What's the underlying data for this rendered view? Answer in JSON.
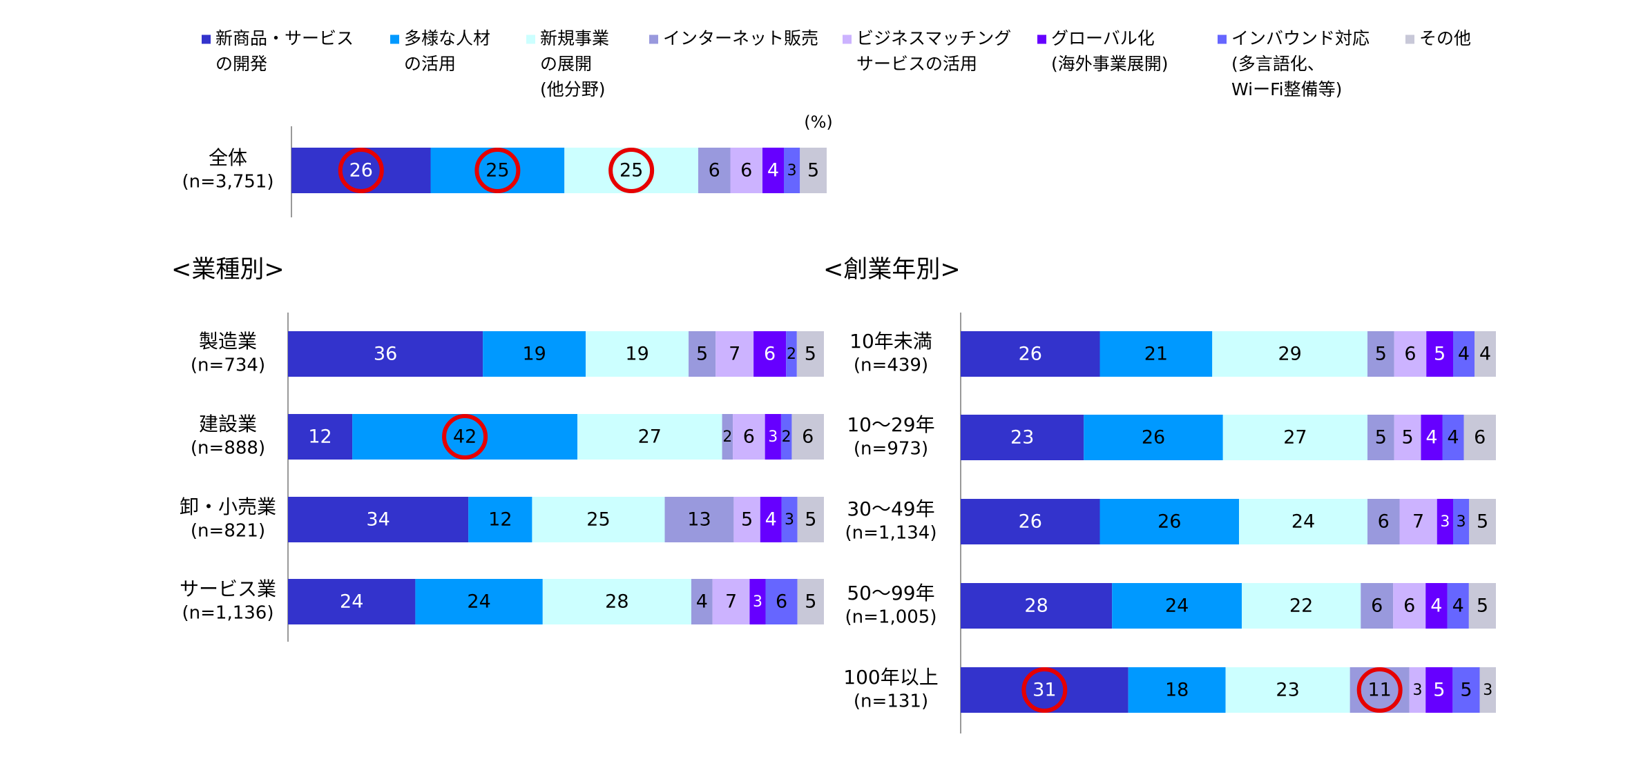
{
  "chart_data": {
    "type": "bar",
    "orientation": "horizontal",
    "stacked": true,
    "unit_label": "(%)",
    "legend_placement": "top",
    "series": [
      {
        "name": "新商品・サービス\nの開発",
        "color": "#3333cc"
      },
      {
        "name": "多様な人材\nの活用",
        "color": "#0099ff"
      },
      {
        "name": "新規事業\nの展開\n(他分野)",
        "color": "#ccffff"
      },
      {
        "name": "インターネット販売",
        "color": "#9999dd"
      },
      {
        "name": "ビジネスマッチング\nサービスの活用",
        "color": "#ccb3ff"
      },
      {
        "name": "グローバル化\n(海外事業展開)",
        "color": "#6600ff"
      },
      {
        "name": "インバウンド対応\n(多言語化、\nWiーFi整備等)",
        "color": "#6666ff"
      },
      {
        "name": "その他",
        "color": "#c8c8d8"
      }
    ],
    "panels": [
      {
        "title": "",
        "rows": [
          {
            "label": "全体",
            "n": "(n=3,751)",
            "values": [
              26,
              25,
              25,
              6,
              6,
              4,
              3,
              5
            ],
            "circled": [
              0,
              1,
              2
            ]
          }
        ]
      },
      {
        "title": "<業種別>",
        "rows": [
          {
            "label": "製造業",
            "n": "(n=734)",
            "values": [
              36,
              19,
              19,
              5,
              7,
              6,
              2,
              5
            ],
            "circled": []
          },
          {
            "label": "建設業",
            "n": "(n=888)",
            "values": [
              12,
              42,
              27,
              2,
              6,
              3,
              2,
              6
            ],
            "circled": [
              1
            ]
          },
          {
            "label": "卸・小売業",
            "n": "(n=821)",
            "values": [
              34,
              12,
              25,
              13,
              5,
              4,
              3,
              5
            ],
            "circled": []
          },
          {
            "label": "サービス業",
            "n": "(n=1,136)",
            "values": [
              24,
              24,
              28,
              4,
              7,
              3,
              6,
              5
            ],
            "circled": []
          }
        ]
      },
      {
        "title": "<創業年別>",
        "rows": [
          {
            "label": "10年未満",
            "n": "(n=439)",
            "values": [
              26,
              21,
              29,
              5,
              6,
              5,
              4,
              4
            ],
            "circled": []
          },
          {
            "label": "10〜29年",
            "n": "(n=973)",
            "values": [
              23,
              26,
              27,
              5,
              5,
              4,
              4,
              6
            ],
            "circled": []
          },
          {
            "label": "30〜49年",
            "n": "(n=1,134)",
            "values": [
              26,
              26,
              24,
              6,
              7,
              3,
              3,
              5
            ],
            "circled": []
          },
          {
            "label": "50〜99年",
            "n": "(n=1,005)",
            "values": [
              28,
              24,
              22,
              6,
              6,
              4,
              4,
              5
            ],
            "circled": []
          },
          {
            "label": "100年以上",
            "n": "(n=131)",
            "values": [
              31,
              18,
              23,
              11,
              3,
              5,
              5,
              3
            ],
            "circled": [
              0,
              3
            ]
          }
        ]
      }
    ],
    "white_label_series": [
      0,
      5
    ],
    "highlight_color": "#e60000"
  }
}
